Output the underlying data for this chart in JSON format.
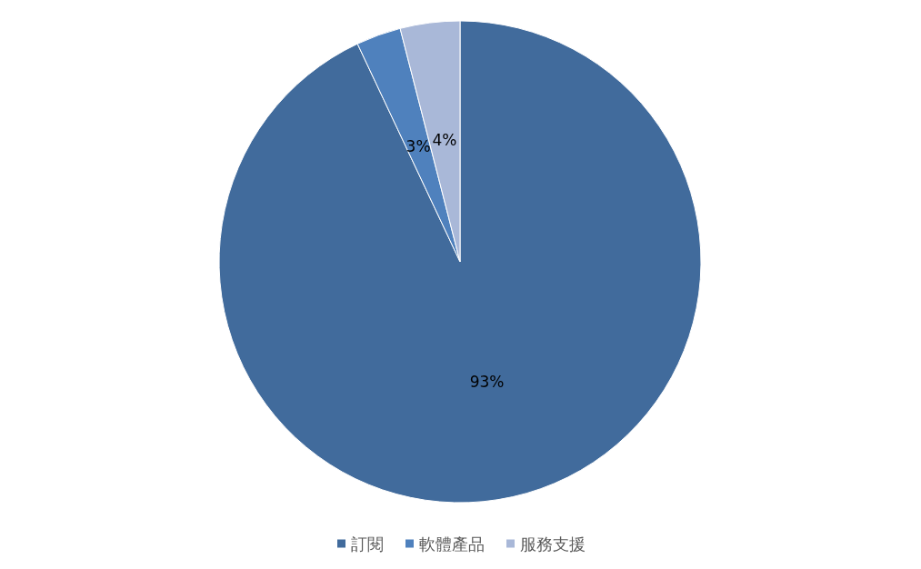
{
  "chart_data": {
    "type": "pie",
    "categories": [
      "訂閱",
      "軟體產品",
      "服務支援"
    ],
    "values": [
      93,
      3,
      4
    ],
    "value_labels": [
      "93%",
      "3%",
      "4%"
    ],
    "colors": [
      "#416b9c",
      "#4f81bd",
      "#a9b8d8"
    ],
    "legend": "bottom"
  }
}
